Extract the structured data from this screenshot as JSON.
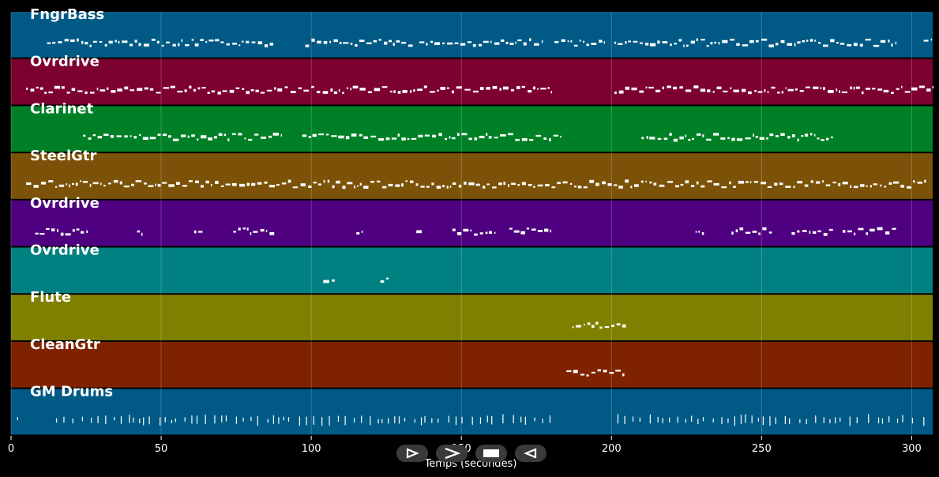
{
  "tracks": [
    {
      "name": "FngrBass",
      "color": "#005a85"
    },
    {
      "name": "Ovrdrive",
      "color": "#7c0030"
    },
    {
      "name": "Clarinet",
      "color": "#008026"
    },
    {
      "name": "SteelGtr",
      "color": "#7b5207"
    },
    {
      "name": "Ovrdrive",
      "color": "#4f0080"
    },
    {
      "name": "Ovrdrive",
      "color": "#008080"
    },
    {
      "name": "Flute",
      "color": "#808000"
    },
    {
      "name": "CleanGtr",
      "color": "#7f2200"
    },
    {
      "name": "GM Drums",
      "color": "#005a85"
    }
  ],
  "axis": {
    "label": "Temps (secondes)",
    "ticks": [
      "0",
      "50",
      "100",
      "150",
      "200",
      "250",
      "300"
    ],
    "tick_values": [
      0,
      50,
      100,
      150,
      200,
      250,
      300
    ],
    "range": [
      0,
      307
    ]
  },
  "controls": {
    "play_icon": "play-outline-icon",
    "next_icon": "chevron-right-icon",
    "stop_icon": "stop-icon",
    "back_icon": "rewind-outline-icon"
  },
  "notes_activity": [
    [
      [
        12,
        88
      ],
      [
        98,
        134
      ],
      [
        136,
        177
      ],
      [
        181,
        198
      ],
      [
        201,
        295
      ],
      [
        304,
        307
      ]
    ],
    [
      [
        5,
        180
      ],
      [
        201,
        307
      ]
    ],
    [
      [
        24,
        90
      ],
      [
        97,
        183
      ],
      [
        210,
        274
      ]
    ],
    [
      [
        5,
        305
      ]
    ],
    [
      [
        8,
        26
      ],
      [
        42,
        44
      ],
      [
        61,
        64
      ],
      [
        74,
        88
      ],
      [
        115,
        117
      ],
      [
        135,
        137
      ],
      [
        147,
        161
      ],
      [
        166,
        180
      ],
      [
        228,
        231
      ],
      [
        240,
        254
      ],
      [
        260,
        274
      ],
      [
        277,
        295
      ]
    ],
    [
      [
        104,
        108
      ],
      [
        123,
        126
      ]
    ],
    [
      [
        187,
        205
      ]
    ],
    [
      [
        185,
        205
      ]
    ],
    [
      [
        2,
        4
      ],
      [
        15,
        180
      ],
      [
        202,
        305
      ]
    ]
  ]
}
